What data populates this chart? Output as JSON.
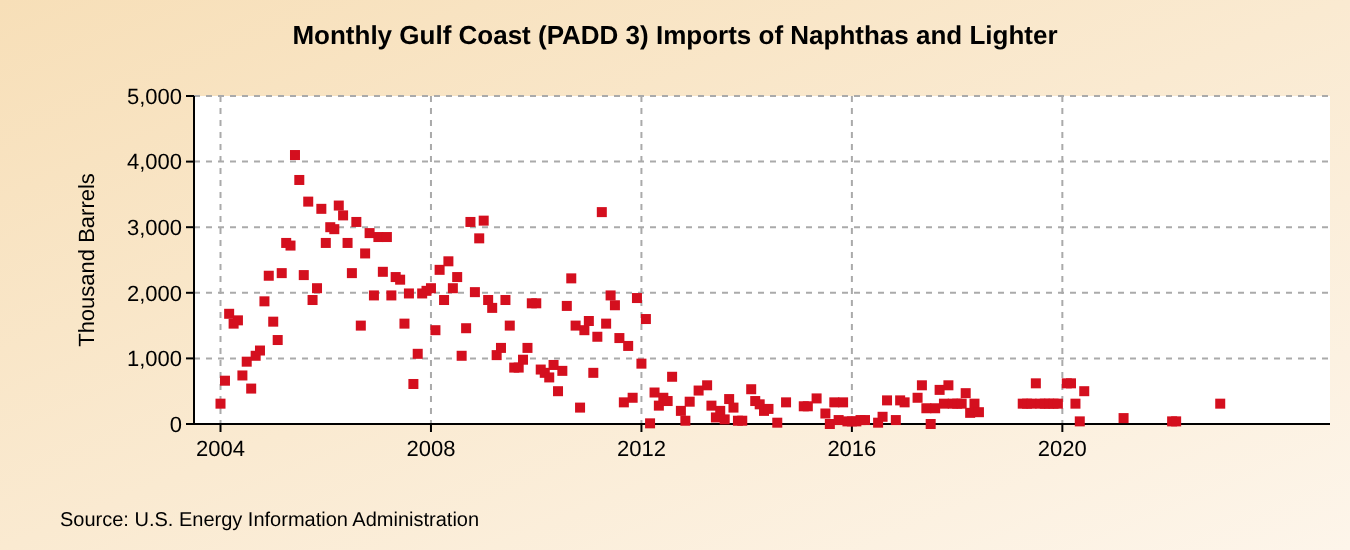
{
  "chart_data": {
    "type": "scatter",
    "title": "Monthly Gulf Coast (PADD 3) Imports of Naphthas and Lighter",
    "ylabel": "Thousand Barrels",
    "annotations": [
      "Source: U.S. Energy Information Administration"
    ],
    "xlim": [
      "2003-07",
      "2025-02"
    ],
    "xticks": [
      "2004",
      "2008",
      "2012",
      "2016",
      "2020"
    ],
    "ylim": [
      0,
      5000
    ],
    "yticks": [
      {
        "value": 0,
        "label": "0"
      },
      {
        "value": 1000,
        "label": "1,000"
      },
      {
        "value": 2000,
        "label": "2,000"
      },
      {
        "value": 3000,
        "label": "3,000"
      },
      {
        "value": 4000,
        "label": "4,000"
      },
      {
        "value": 5000,
        "label": "5,000"
      }
    ],
    "grid": true,
    "marker": "square",
    "series": [
      {
        "color": "#d40f1e",
        "x": [
          "2004-01",
          "2004-02",
          "2004-03",
          "2004-04",
          "2004-05",
          "2004-06",
          "2004-07",
          "2004-08",
          "2004-09",
          "2004-10",
          "2004-11",
          "2004-12",
          "2005-01",
          "2005-02",
          "2005-03",
          "2005-04",
          "2005-05",
          "2005-06",
          "2005-07",
          "2005-08",
          "2005-09",
          "2005-10",
          "2005-11",
          "2005-12",
          "2006-01",
          "2006-02",
          "2006-03",
          "2006-04",
          "2006-05",
          "2006-06",
          "2006-07",
          "2006-08",
          "2006-09",
          "2006-10",
          "2006-11",
          "2006-12",
          "2007-01",
          "2007-02",
          "2007-03",
          "2007-04",
          "2007-05",
          "2007-06",
          "2007-07",
          "2007-08",
          "2007-09",
          "2007-10",
          "2007-11",
          "2007-12",
          "2008-01",
          "2008-02",
          "2008-03",
          "2008-04",
          "2008-05",
          "2008-06",
          "2008-07",
          "2008-08",
          "2008-09",
          "2008-10",
          "2008-11",
          "2008-12",
          "2009-01",
          "2009-02",
          "2009-03",
          "2009-04",
          "2009-05",
          "2009-06",
          "2009-07",
          "2009-08",
          "2009-09",
          "2009-10",
          "2009-11",
          "2009-12",
          "2010-01",
          "2010-02",
          "2010-03",
          "2010-04",
          "2010-05",
          "2010-06",
          "2010-07",
          "2010-08",
          "2010-09",
          "2010-10",
          "2010-11",
          "2010-12",
          "2011-01",
          "2011-02",
          "2011-03",
          "2011-04",
          "2011-05",
          "2011-06",
          "2011-07",
          "2011-08",
          "2011-09",
          "2011-10",
          "2011-11",
          "2011-12",
          "2012-01",
          "2012-02",
          "2012-03",
          "2012-04",
          "2012-05",
          "2012-06",
          "2012-07",
          "2012-08",
          "2012-10",
          "2012-11",
          "2012-12",
          "2013-02",
          "2013-04",
          "2013-05",
          "2013-06",
          "2013-07",
          "2013-08",
          "2013-09",
          "2013-10",
          "2013-11",
          "2013-12",
          "2014-02",
          "2014-03",
          "2014-04",
          "2014-05",
          "2014-06",
          "2014-08",
          "2014-10",
          "2015-02",
          "2015-03",
          "2015-05",
          "2015-07",
          "2015-08",
          "2015-09",
          "2015-10",
          "2015-11",
          "2015-12",
          "2016-01",
          "2016-02",
          "2016-03",
          "2016-04",
          "2016-07",
          "2016-08",
          "2016-09",
          "2016-11",
          "2016-12",
          "2017-01",
          "2017-04",
          "2017-05",
          "2017-06",
          "2017-07",
          "2017-08",
          "2017-09",
          "2017-10",
          "2017-11",
          "2017-12",
          "2018-01",
          "2018-02",
          "2018-03",
          "2018-04",
          "2018-05",
          "2018-06",
          "2019-04",
          "2019-05",
          "2019-06",
          "2019-07",
          "2019-08",
          "2019-09",
          "2019-10",
          "2019-11",
          "2019-12",
          "2020-02",
          "2020-03",
          "2020-04",
          "2020-05",
          "2020-06",
          "2021-03",
          "2022-02",
          "2022-03",
          "2023-01"
        ],
        "values": [
          310,
          660,
          1680,
          1530,
          1580,
          740,
          950,
          540,
          1040,
          1120,
          1870,
          2260,
          1560,
          1280,
          2300,
          2760,
          2720,
          4100,
          3720,
          2270,
          3390,
          1890,
          2070,
          3280,
          2760,
          3000,
          2970,
          3330,
          3180,
          2760,
          2300,
          3080,
          1500,
          2600,
          2910,
          1960,
          2850,
          2320,
          2850,
          1960,
          2240,
          2200,
          1530,
          1990,
          610,
          1070,
          1990,
          2030,
          2070,
          1430,
          2350,
          1890,
          2480,
          2070,
          2240,
          1040,
          1460,
          3080,
          2010,
          2830,
          3100,
          1890,
          1770,
          1050,
          1160,
          1890,
          1500,
          860,
          860,
          980,
          1160,
          1840,
          1840,
          830,
          780,
          710,
          900,
          500,
          810,
          1800,
          2220,
          1500,
          250,
          1430,
          1570,
          780,
          1330,
          3230,
          1530,
          1960,
          1810,
          1310,
          330,
          1190,
          400,
          1920,
          920,
          1600,
          10,
          480,
          280,
          400,
          350,
          720,
          200,
          50,
          340,
          510,
          590,
          280,
          100,
          200,
          70,
          380,
          250,
          50,
          50,
          530,
          350,
          300,
          200,
          230,
          20,
          330,
          270,
          270,
          390,
          160,
          0,
          330,
          60,
          330,
          40,
          40,
          40,
          60,
          60,
          20,
          110,
          360,
          60,
          360,
          330,
          400,
          590,
          240,
          0,
          240,
          520,
          310,
          590,
          310,
          310,
          310,
          470,
          170,
          310,
          180,
          310,
          310,
          310,
          620,
          310,
          310,
          310,
          310,
          310,
          620,
          620,
          310,
          40,
          500,
          90,
          40,
          40,
          310
        ]
      }
    ]
  }
}
